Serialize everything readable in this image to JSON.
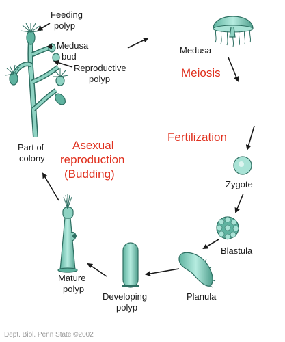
{
  "labels": {
    "feeding_polyp": [
      "Feeding",
      "polyp"
    ],
    "medusa_bud": [
      "Medusa",
      "bud"
    ],
    "reproductive_polyp": [
      "Reproductive",
      "polyp"
    ],
    "medusa": "Medusa",
    "meiosis": "Meiosis",
    "fertilization": "Fertilization",
    "zygote": "Zygote",
    "blastula": "Blastula",
    "planula": "Planula",
    "developing_polyp": [
      "Developing",
      "polyp"
    ],
    "mature_polyp": [
      "Mature",
      "polyp"
    ],
    "part_of_colony": [
      "Part of",
      "colony"
    ],
    "asexual": [
      "Asexual",
      "reproduction",
      "(Budding)"
    ]
  },
  "credit": "Dept. Biol. Penn State ©2002",
  "colors": {
    "accent_red": "#e0301e",
    "organism_teal": "#8fd3c3"
  }
}
